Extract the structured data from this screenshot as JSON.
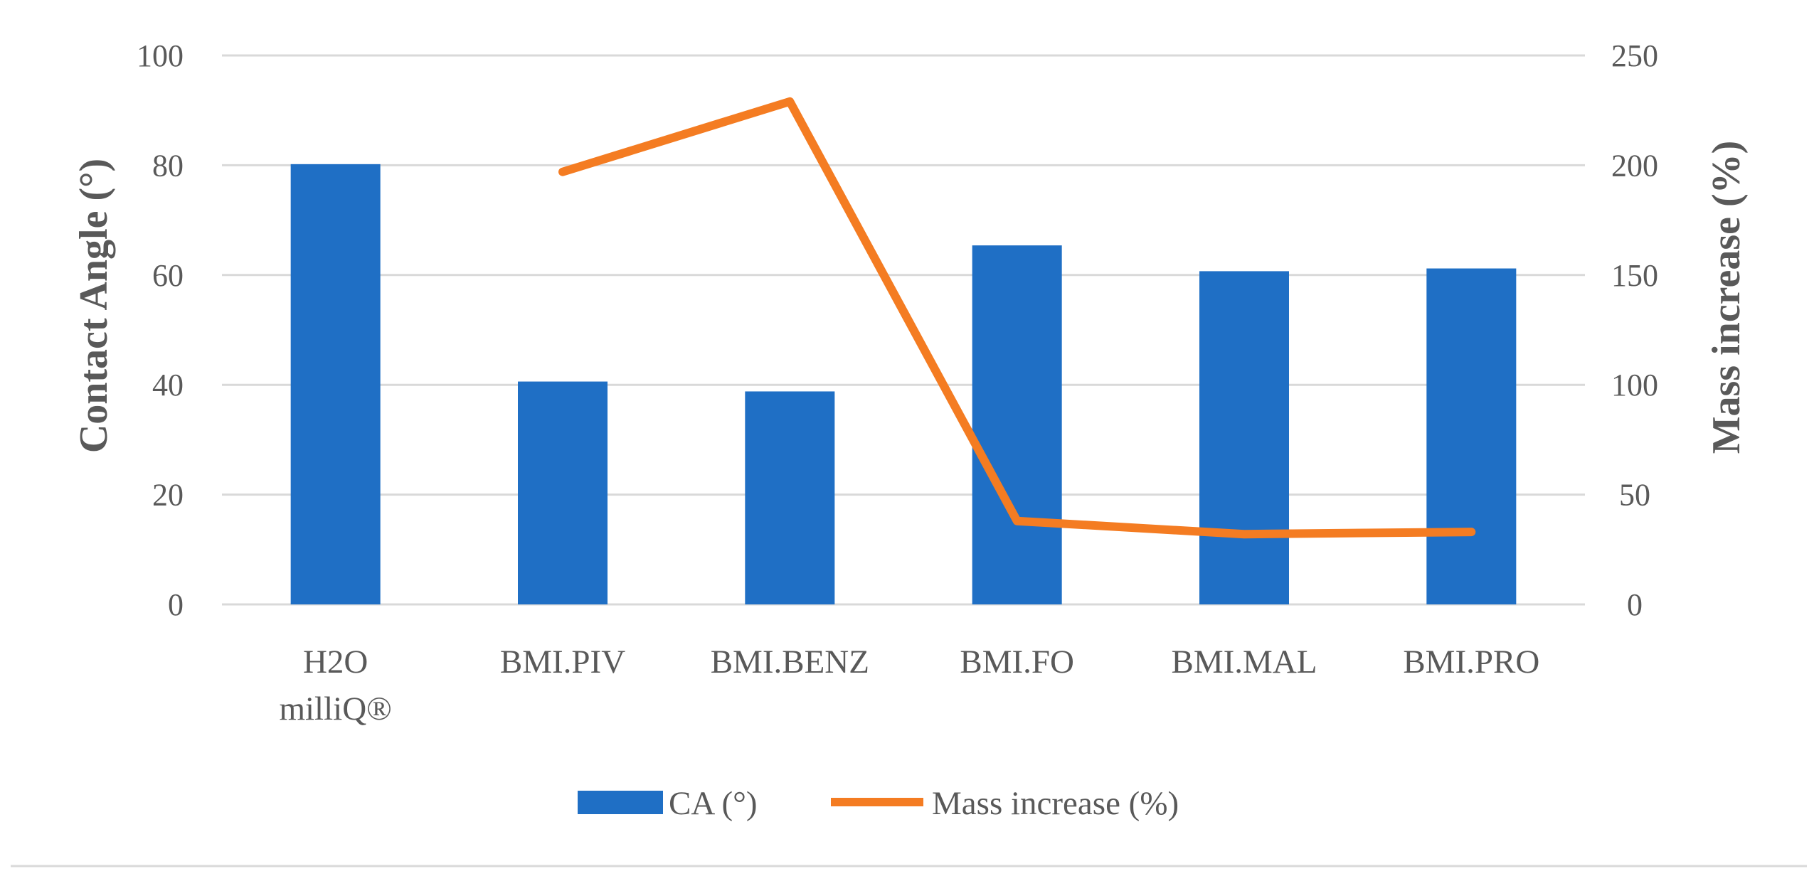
{
  "chart_data": {
    "type": "bar",
    "categories": [
      [
        "H2O",
        "milliQ®"
      ],
      [
        "BMI.PIV"
      ],
      [
        "BMI.BENZ"
      ],
      [
        "BMI.FO"
      ],
      [
        "BMI.MAL"
      ],
      [
        "BMI.PRO"
      ]
    ],
    "series": [
      {
        "name": "CA  (°)",
        "kind": "bar",
        "axis": "left",
        "color": "#1f6fc5",
        "values": [
          80.2,
          40.6,
          38.8,
          65.4,
          60.7,
          61.2
        ]
      },
      {
        "name": "Mass increase (%)",
        "kind": "line",
        "axis": "right",
        "color": "#f47c22",
        "values": [
          null,
          197,
          229,
          38,
          32,
          33
        ]
      }
    ],
    "title": "",
    "xlabel": "",
    "ylabel": "Contact Angle (°)",
    "y2label": "Mass increase (%)",
    "ylim": [
      0,
      100
    ],
    "y2lim": [
      0,
      250
    ],
    "yticks": [
      0,
      20,
      40,
      60,
      80,
      100
    ],
    "y2ticks": [
      0,
      50,
      100,
      150,
      200,
      250
    ],
    "grid": true,
    "legend_position": "bottom-center"
  }
}
